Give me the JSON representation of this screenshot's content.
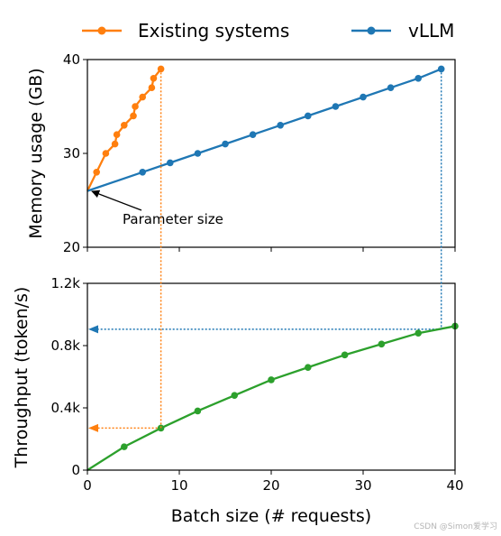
{
  "colors": {
    "existing": "#ff7f0e",
    "vllm": "#1f77b4",
    "throughput": "#2ca02c",
    "axis": "#000000",
    "annotation": "#000000"
  },
  "legend": {
    "items": [
      {
        "label": "Existing systems",
        "color": "#ff7f0e",
        "marker": "circle"
      },
      {
        "label": "vLLM",
        "color": "#1f77b4",
        "marker": "circle"
      }
    ],
    "placement": "top, above plots, 2 columns"
  },
  "watermark": "CSDN @Simon爱学习",
  "chart_data": [
    {
      "type": "line",
      "panel": "top",
      "ylabel": "Memory usage (GB)",
      "xlabel": "",
      "xlim": [
        0,
        40
      ],
      "ylim": [
        20,
        40
      ],
      "xticks": [
        0,
        10,
        20,
        30,
        40
      ],
      "xtick_labels_visible": false,
      "yticks": [
        20,
        30,
        40
      ],
      "ytick_labels": [
        "20",
        "30",
        "40"
      ],
      "grid": false,
      "series": [
        {
          "name": "Existing systems",
          "color": "#ff7f0e",
          "x": [
            0,
            1,
            2,
            3,
            3.2,
            4,
            5,
            5.2,
            6,
            7,
            7.2,
            8
          ],
          "y": [
            26,
            28,
            30,
            31,
            32,
            33,
            34,
            35,
            36,
            37,
            38,
            39
          ]
        },
        {
          "name": "vLLM",
          "color": "#1f77b4",
          "x": [
            0,
            6,
            9,
            12,
            15,
            18,
            21,
            24,
            27,
            30,
            33,
            36,
            38.5
          ],
          "y": [
            26,
            28,
            29,
            30,
            31,
            32,
            33,
            34,
            35,
            36,
            37,
            38,
            39
          ]
        }
      ],
      "annotations": [
        {
          "text": "Parameter size",
          "points_to": [
            0.4,
            26
          ]
        }
      ]
    },
    {
      "type": "line",
      "panel": "bottom",
      "ylabel": "Throughput (token/s)",
      "xlabel": "Batch size (# requests)",
      "xlim": [
        0,
        40
      ],
      "ylim": [
        0,
        1200
      ],
      "xticks": [
        0,
        10,
        20,
        30,
        40
      ],
      "xtick_labels": [
        "0",
        "10",
        "20",
        "30",
        "40"
      ],
      "yticks": [
        0,
        400,
        800,
        1200
      ],
      "ytick_labels": [
        "0",
        "0.4k",
        "0.8k",
        "1.2k"
      ],
      "grid": false,
      "series": [
        {
          "color": "#2ca02c",
          "x": [
            0,
            4,
            8,
            12,
            16,
            20,
            24,
            28,
            32,
            36,
            40
          ],
          "y": [
            0,
            150,
            270,
            380,
            480,
            580,
            660,
            740,
            810,
            880,
            925
          ]
        }
      ],
      "reference_lines": [
        {
          "color": "#ff7f0e",
          "batch_size": 8,
          "memory_gb": 39,
          "throughput": 270
        },
        {
          "color": "#1f77b4",
          "batch_size": 38.5,
          "memory_gb": 39,
          "throughput": 905
        }
      ]
    }
  ]
}
